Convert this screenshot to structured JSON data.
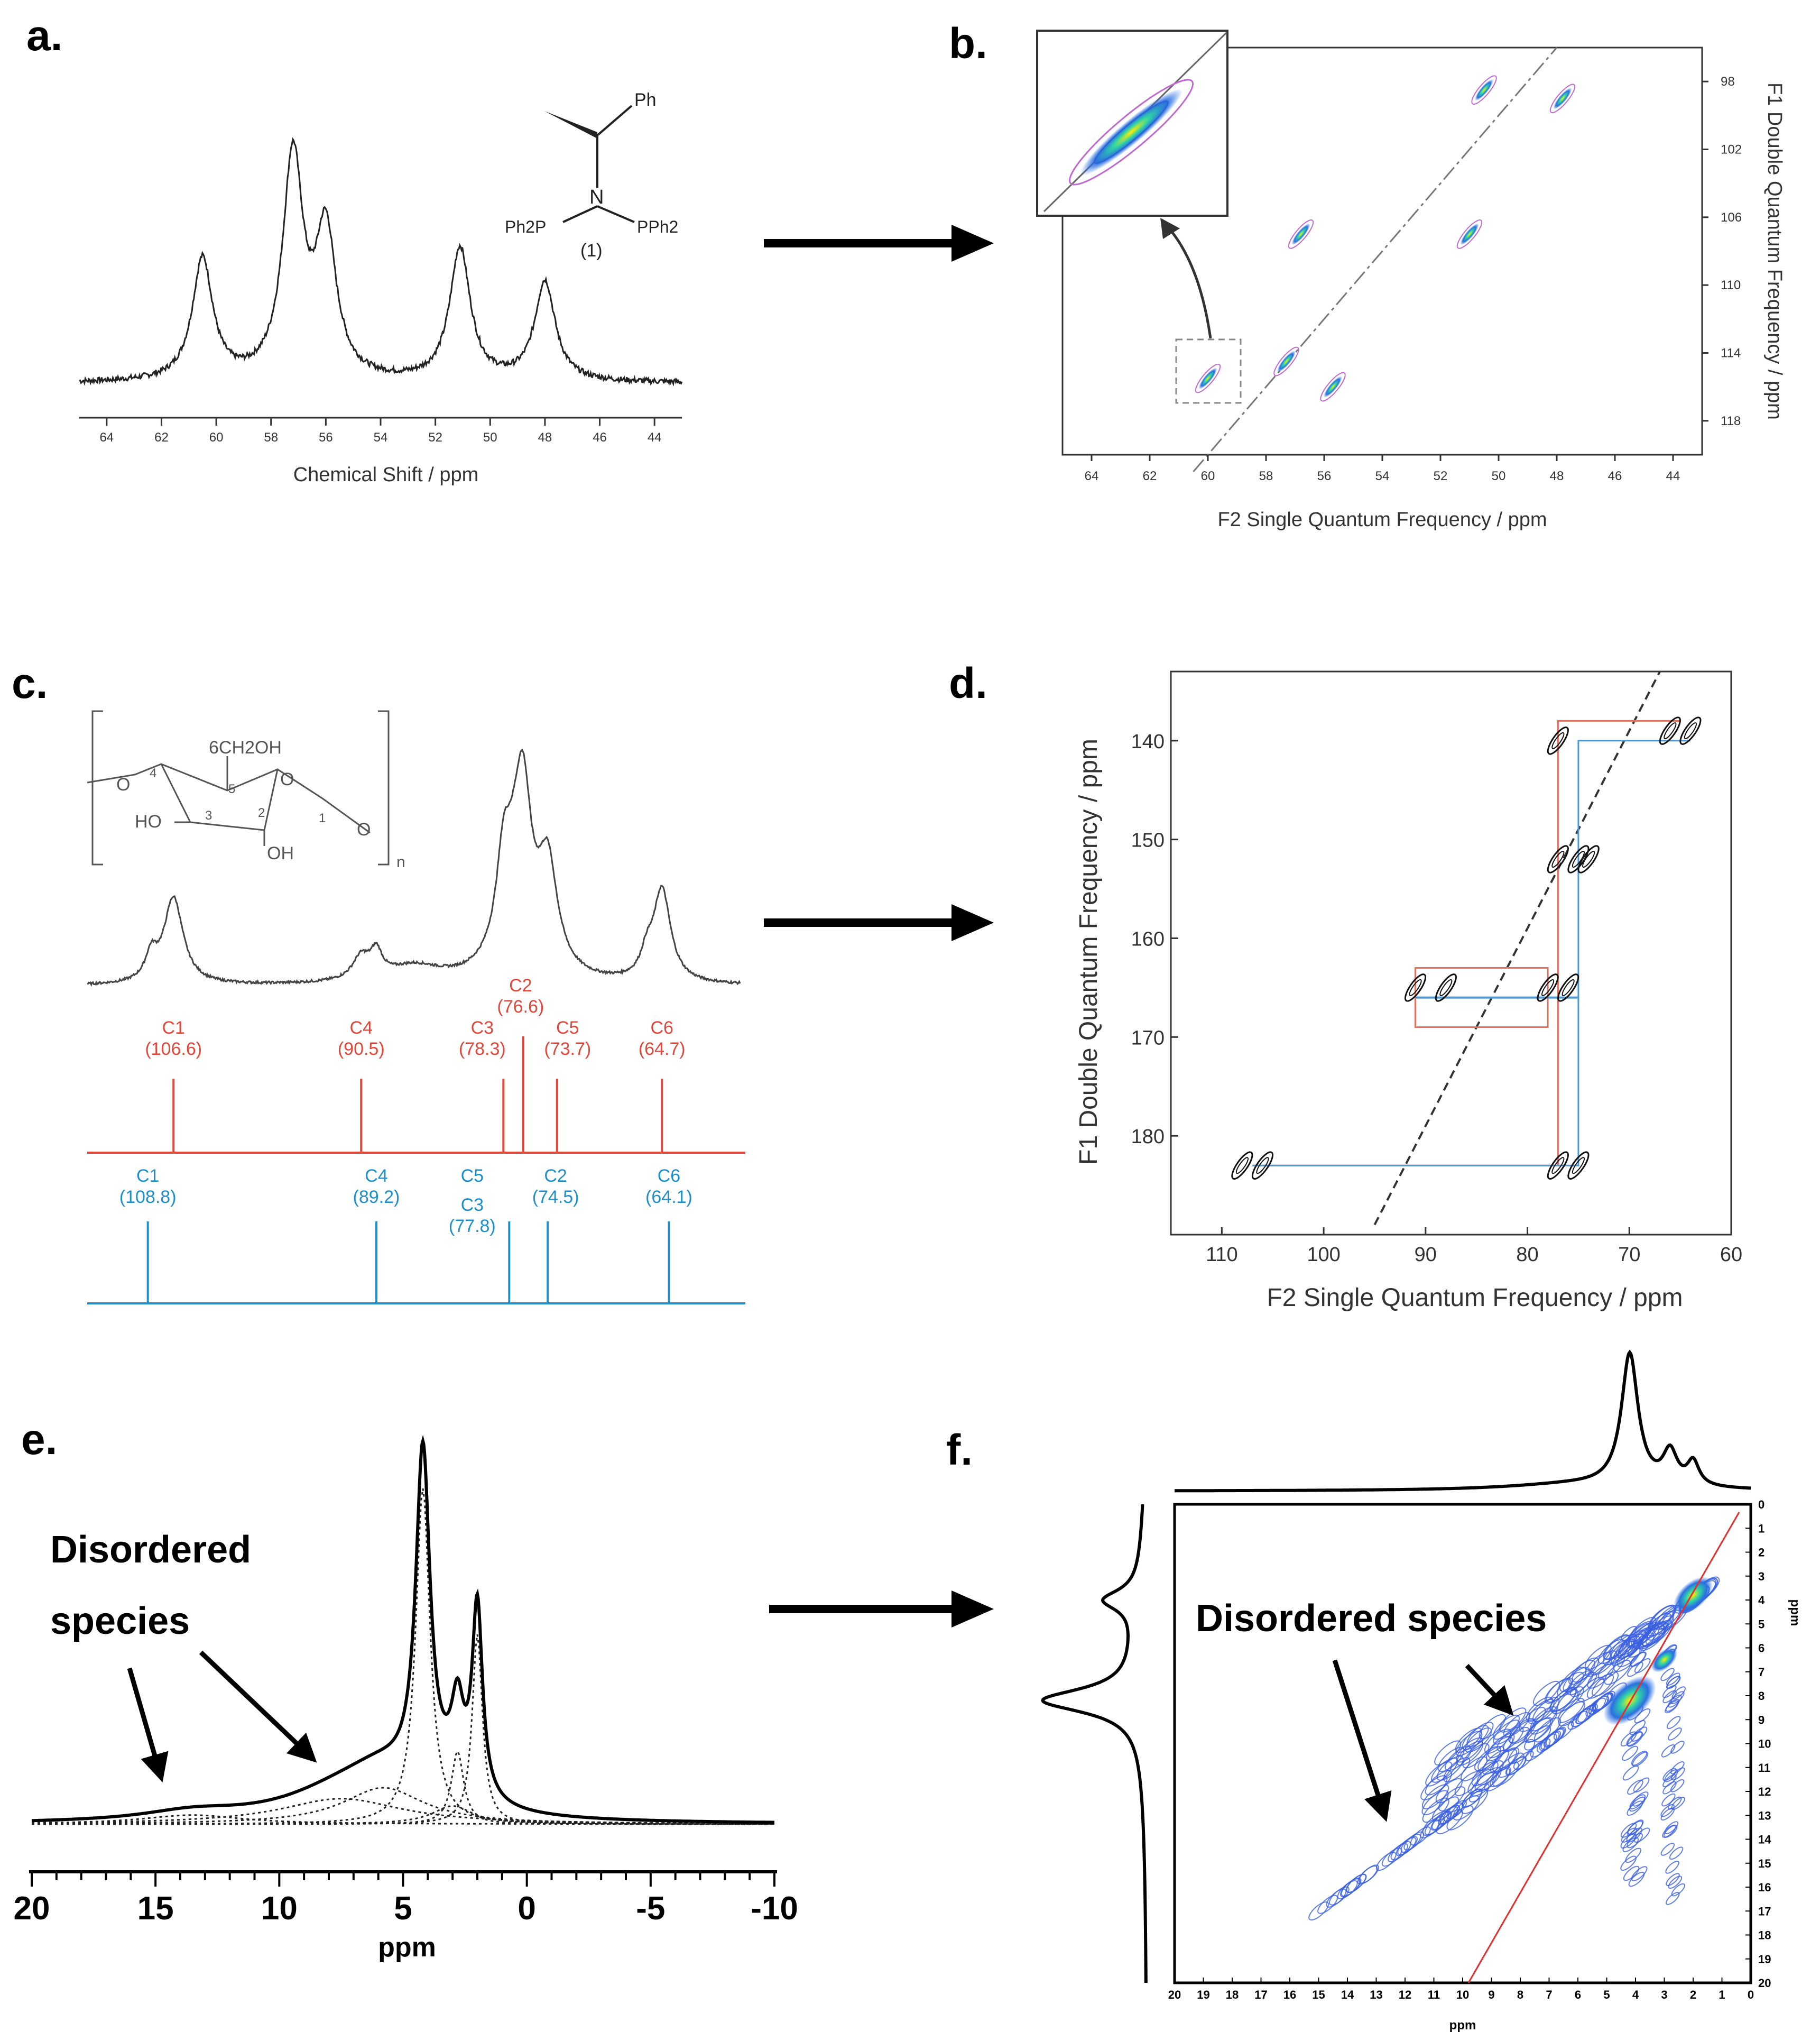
{
  "panels": {
    "a": {
      "label": "a."
    },
    "b": {
      "label": "b."
    },
    "c": {
      "label": "c."
    },
    "d": {
      "label": "d."
    },
    "e": {
      "label": "e."
    },
    "f": {
      "label": "f."
    }
  },
  "structure_a": {
    "ph": "Ph",
    "n": "N",
    "pph2_left": "Ph2P",
    "pph2_right": "PPh2",
    "compound": "(1)"
  },
  "structure_c": {
    "ch2oh": "6CH2OH",
    "ho": "HO",
    "oh": "OH",
    "o_ring": "O",
    "o_left": "O",
    "o_right": "O",
    "n": "n",
    "pos4": "4",
    "pos5": "5",
    "pos3": "3",
    "pos2": "2",
    "pos1": "1"
  },
  "chart_data": [
    {
      "panel": "a",
      "type": "line",
      "xlabel": "Chemical Shift / ppm",
      "xlim": [
        65,
        43
      ],
      "xticks": [
        64,
        62,
        60,
        58,
        56,
        54,
        52,
        50,
        48,
        46,
        44
      ],
      "peaks": [
        {
          "ppm": 60.5,
          "height": 0.55
        },
        {
          "ppm": 57.2,
          "height": 1.0
        },
        {
          "ppm": 56.0,
          "height": 0.65
        },
        {
          "ppm": 51.1,
          "height": 0.6
        },
        {
          "ppm": 48.0,
          "height": 0.45
        }
      ]
    },
    {
      "panel": "b",
      "type": "scatter",
      "xlabel": "F2 Single Quantum Frequency / ppm",
      "ylabel": "F1 Double Quantum Frequency / ppm",
      "xlim": [
        65,
        43
      ],
      "ylim": [
        96,
        120
      ],
      "xticks": [
        64,
        62,
        60,
        58,
        56,
        54,
        52,
        50,
        48,
        46,
        44
      ],
      "yticks": [
        98,
        102,
        106,
        110,
        114,
        118
      ],
      "diagonal": [
        [
          60.5,
          121
        ],
        [
          48,
          96
        ]
      ],
      "inset_peak": [
        60,
        115
      ],
      "peaks": [
        [
          60,
          115.5
        ],
        [
          57.3,
          114.5
        ],
        [
          56.8,
          107
        ],
        [
          55.7,
          116
        ],
        [
          51,
          107
        ],
        [
          50.5,
          98.5
        ],
        [
          47.8,
          99
        ]
      ]
    },
    {
      "panel": "c",
      "type": "line",
      "assignments_red": [
        {
          "atom": "C1",
          "shift": "(106.6)"
        },
        {
          "atom": "C4",
          "shift": "(90.5)"
        },
        {
          "atom": "C3",
          "shift": "(78.3)"
        },
        {
          "atom": "C2",
          "shift": "(76.6)"
        },
        {
          "atom": "C5",
          "shift": "(73.7)"
        },
        {
          "atom": "C6",
          "shift": "(64.7)"
        }
      ],
      "assignments_blue": [
        {
          "atom": "C1",
          "shift": "(108.8)"
        },
        {
          "atom": "C4",
          "shift": "(89.2)"
        },
        {
          "atom": "C5",
          "shift": ""
        },
        {
          "atom": "C3",
          "shift": "(77.8)"
        },
        {
          "atom": "C2",
          "shift": "(74.5)"
        },
        {
          "atom": "C6",
          "shift": "(64.1)"
        }
      ],
      "red_positions_ppm": [
        106.6,
        90.5,
        78.3,
        76.6,
        73.7,
        64.7
      ],
      "blue_positions_ppm": [
        108.8,
        89.2,
        77.8,
        74.5,
        64.1
      ]
    },
    {
      "panel": "d",
      "type": "scatter",
      "xlabel": "F2 Single Quantum Frequency / ppm",
      "ylabel": "F1 Double Quantum Frequency / ppm",
      "xlim": [
        115,
        60
      ],
      "ylim": [
        133,
        190
      ],
      "xticks": [
        110,
        100,
        90,
        80,
        70,
        60
      ],
      "yticks": [
        140,
        150,
        160,
        170,
        180
      ],
      "peaks": [
        [
          108,
          183
        ],
        [
          106,
          183
        ],
        [
          77,
          183
        ],
        [
          75,
          183
        ],
        [
          91,
          165
        ],
        [
          88,
          165
        ],
        [
          78,
          165
        ],
        [
          76,
          165
        ],
        [
          77,
          152
        ],
        [
          75,
          152
        ],
        [
          74,
          152
        ],
        [
          66,
          139
        ],
        [
          64,
          139
        ],
        [
          77,
          140
        ]
      ],
      "red_path": [
        [
          107,
          183
        ],
        [
          77,
          183
        ],
        [
          77,
          138
        ],
        [
          65,
          138
        ]
      ],
      "blue_path": [
        [
          107,
          183
        ],
        [
          75,
          183
        ],
        [
          75,
          140
        ],
        [
          64,
          140
        ]
      ],
      "red_box": [
        [
          91,
          163
        ],
        [
          78,
          163
        ],
        [
          78,
          169
        ],
        [
          91,
          169
        ]
      ],
      "blue_box": [
        [
          91,
          166
        ],
        [
          75,
          166
        ]
      ]
    },
    {
      "panel": "e",
      "type": "line",
      "xlabel": "ppm",
      "xlim": [
        20,
        -10
      ],
      "xticks": [
        20,
        15,
        10,
        5,
        0,
        -5,
        -10
      ],
      "annotation": "Disordered",
      "annotation2": "species",
      "peaks": [
        {
          "ppm": 4.2,
          "height": 1.0
        },
        {
          "ppm": 2.8,
          "height": 0.25
        },
        {
          "ppm": 2.0,
          "height": 0.58
        }
      ]
    },
    {
      "panel": "f",
      "type": "heatmap",
      "xlabel": "ppm",
      "ylabel": "ppm",
      "xlim": [
        20,
        0
      ],
      "ylim": [
        0,
        20
      ],
      "xticks": [
        20,
        19,
        18,
        17,
        16,
        15,
        14,
        13,
        12,
        11,
        10,
        9,
        8,
        7,
        6,
        5,
        4,
        3,
        2,
        1,
        0
      ],
      "yticks": [
        0,
        1,
        2,
        3,
        4,
        5,
        6,
        7,
        8,
        9,
        10,
        11,
        12,
        13,
        14,
        15,
        16,
        17,
        18,
        19,
        20
      ],
      "annotation": "Disordered species"
    }
  ]
}
